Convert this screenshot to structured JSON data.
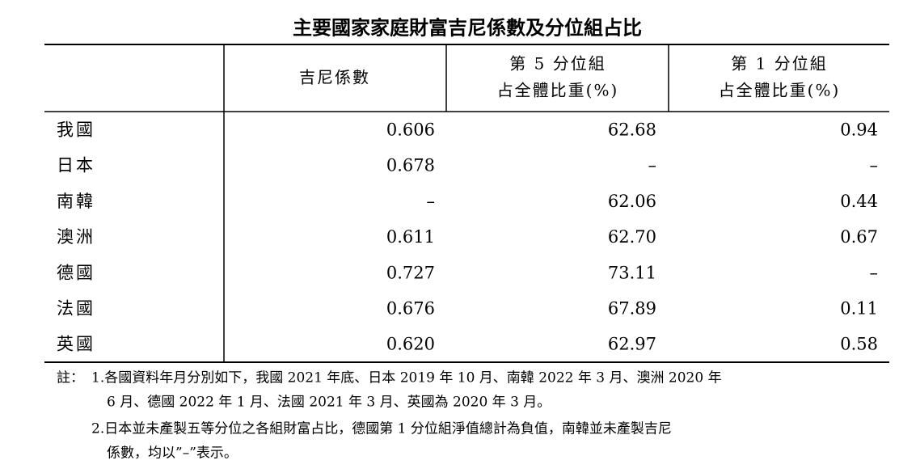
{
  "title": "主要國家家庭財富吉尼係數及分位組占比",
  "table": {
    "header": [
      [
        "吉尼係數"
      ],
      [
        "第 5 分位組",
        "占全體比重(%)"
      ],
      [
        "第 1 分位組",
        "占全體比重(%)"
      ]
    ],
    "rows": [
      [
        "我國",
        "0.606",
        "62.68",
        "0.94"
      ],
      [
        "日本",
        "0.678",
        "–",
        "–"
      ],
      [
        "南韓",
        "–",
        "62.06",
        "0.44"
      ],
      [
        "澳洲",
        "0.611",
        "62.70",
        "0.67"
      ],
      [
        "德國",
        "0.727",
        "73.11",
        "–"
      ],
      [
        "法國",
        "0.676",
        "67.89",
        "0.11"
      ],
      [
        "英國",
        "0.620",
        "62.97",
        "0.58"
      ]
    ]
  },
  "notes": {
    "label": "註：",
    "items": [
      [
        "1.各國資料年月分別如下，我國 2021 年底、日本 2019 年 10 月、南韓 2022 年 3 月、澳洲 2020 年",
        "6 月、德國 2022 年 1 月、法國 2021 年 3 月、英國為 2020 年 3 月。"
      ],
      [
        "2.日本並未產製五等分位之各組財富占比，德國第 1 分位組淨值總計為負值，南韓並未產製吉尼",
        "係數，均以”–”表示。"
      ]
    ]
  }
}
